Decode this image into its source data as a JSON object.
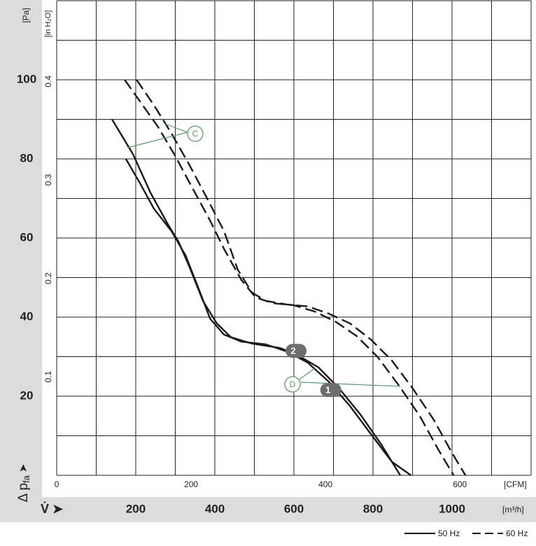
{
  "chart_data": {
    "type": "line",
    "x_unit": "[m³/h]",
    "x2_unit": "[CFM]",
    "y_unit": "[Pa]",
    "y2_unit": "[in H₂O]",
    "x_label": "V̇ ➤",
    "y_label": {
      "main": "Δ p",
      "sub": "fa",
      "arrow": "➤"
    },
    "xlim": [
      0,
      1200
    ],
    "xticks": [
      200,
      400,
      600,
      800,
      1000
    ],
    "xgrid": [
      0,
      100,
      200,
      300,
      400,
      500,
      600,
      700,
      800,
      900,
      1000,
      1100,
      1200
    ],
    "ylim": [
      0,
      120
    ],
    "yticks": [
      20,
      40,
      60,
      80,
      100
    ],
    "ygrid": [
      0,
      10,
      20,
      30,
      40,
      50,
      60,
      70,
      80,
      90,
      100,
      110,
      120
    ],
    "x2lim": [
      0,
      706
    ],
    "x2ticks": [
      0,
      200,
      400,
      600
    ],
    "y2lim": [
      0,
      0.482
    ],
    "y2ticks": [
      0.1,
      0.2,
      0.3,
      0.4
    ],
    "grid": true,
    "color": "#1a1a1a",
    "series": [
      {
        "label": "2",
        "dashed": false,
        "x": [
          140,
          193,
          237,
          281,
          308,
          335,
          370,
          405,
          441,
          494,
          565,
          609,
          662,
          715,
          768,
          821,
          869
        ],
        "values": [
          90,
          81.2,
          71.5,
          63.5,
          59.1,
          52.9,
          44.1,
          38.4,
          34.9,
          33.3,
          32.2,
          30.4,
          27.3,
          21.9,
          15.4,
          7.8,
          0
        ]
      },
      {
        "label": "1",
        "dashed": false,
        "x": [
          175,
          211,
          246,
          290,
          326,
          361,
          388,
          423,
          467,
          529,
          582,
          635,
          688,
          742,
          795,
          848,
          896
        ],
        "values": [
          80,
          73.8,
          67.4,
          61.8,
          55.6,
          46.7,
          39.6,
          35.6,
          33.8,
          33.1,
          31.3,
          28.5,
          23.7,
          17.5,
          10.4,
          3.4,
          0
        ]
      },
      {
        "dashed": true,
        "x": [
          172,
          211,
          255,
          299,
          343,
          388,
          423,
          467,
          503,
          547,
          600,
          653,
          706,
          759,
          812,
          865,
          919,
          963,
          1004
        ],
        "values": [
          100,
          94.5,
          88.3,
          80.9,
          72.7,
          64.4,
          57.3,
          49.4,
          45,
          43.5,
          43,
          41.4,
          38.8,
          35.2,
          29.9,
          22.8,
          14.9,
          6.9,
          0
        ]
      },
      {
        "dashed": true,
        "x": [
          202,
          246,
          290,
          335,
          379,
          423,
          458,
          494,
          529,
          582,
          635,
          688,
          742,
          795,
          848,
          901,
          954,
          998,
          1034
        ],
        "values": [
          100,
          93.6,
          86.5,
          78.6,
          70.3,
          61.8,
          52,
          46.2,
          44.1,
          43.2,
          42.7,
          40.9,
          38.4,
          34.3,
          29,
          21.9,
          14,
          6,
          0
        ]
      }
    ],
    "annotations": [
      "C",
      "D"
    ],
    "legend": [
      {
        "name": "50 Hz",
        "dashed": false
      },
      {
        "name": "60 Hz",
        "dashed": true
      }
    ]
  }
}
